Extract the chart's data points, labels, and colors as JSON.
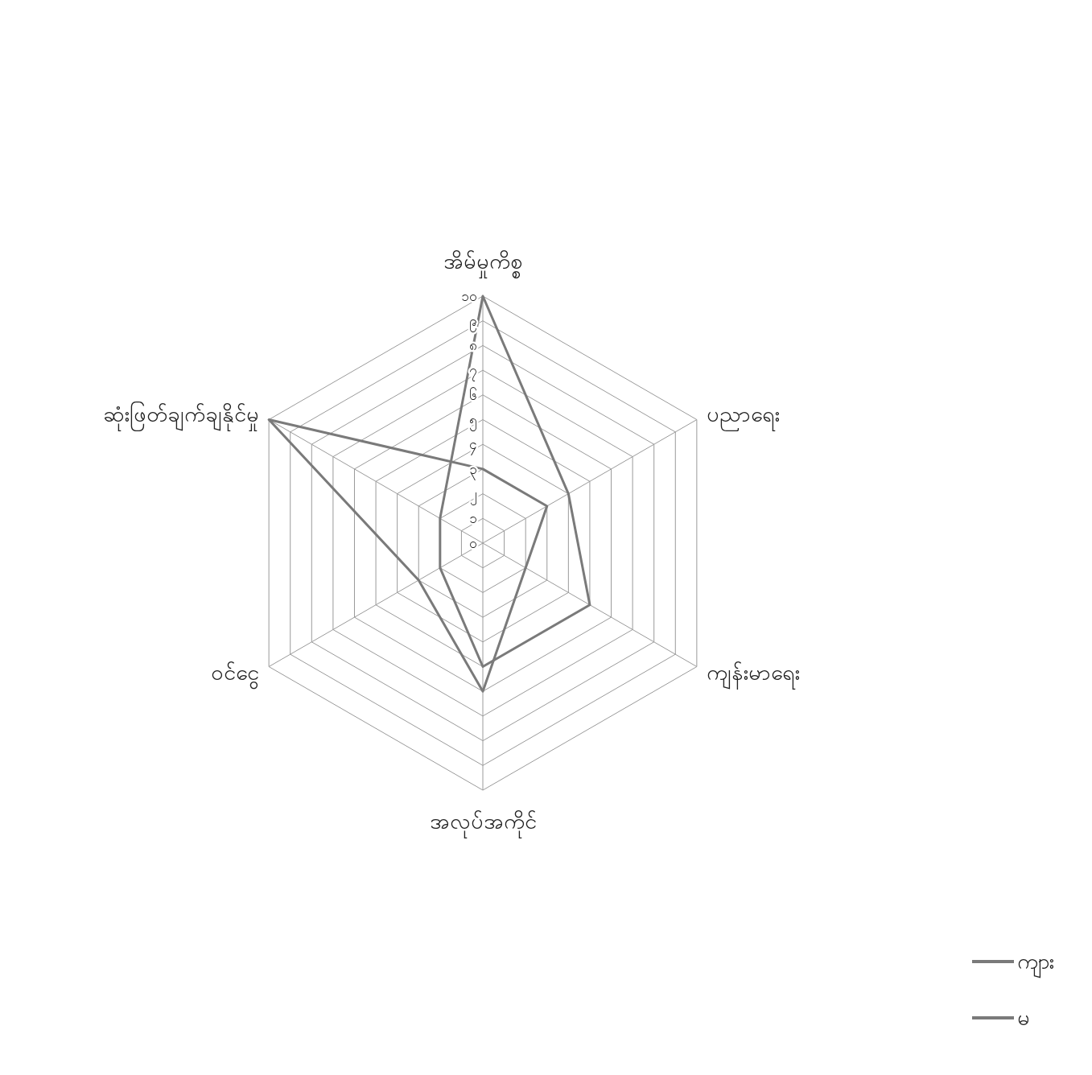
{
  "chart_data": {
    "type": "radar",
    "categories": [
      "အိမ်မှုကိစ္စ",
      "ပညာရေး",
      "ကျန်းမာရေး",
      "အလုပ်အကိုင်",
      "ဝင်ငွေ",
      "ဆုံးဖြတ်ချက်ချနိုင်မှု"
    ],
    "series": [
      {
        "name": "ကျား",
        "color": "#7a7a7a",
        "values": [
          10,
          4,
          5,
          5,
          2,
          2
        ]
      },
      {
        "name": "မ",
        "color": "#7a7a7a",
        "values": [
          3,
          3,
          2,
          6,
          3,
          10
        ]
      }
    ],
    "ylim": [
      0,
      10
    ],
    "yticks": [
      {
        "value": 0,
        "label": "၀"
      },
      {
        "value": 1,
        "label": "၁"
      },
      {
        "value": 2,
        "label": "၂"
      },
      {
        "value": 3,
        "label": "၃"
      },
      {
        "value": 4,
        "label": "၄"
      },
      {
        "value": 5,
        "label": "၅"
      },
      {
        "value": 6,
        "label": "၆"
      },
      {
        "value": 7,
        "label": "၇"
      },
      {
        "value": 8,
        "label": "၈"
      },
      {
        "value": 9,
        "label": "၉"
      },
      {
        "value": 10,
        "label": "၁၀"
      }
    ],
    "grid": true,
    "legend": "bottom right",
    "line_style": "solid",
    "marker": "none"
  }
}
